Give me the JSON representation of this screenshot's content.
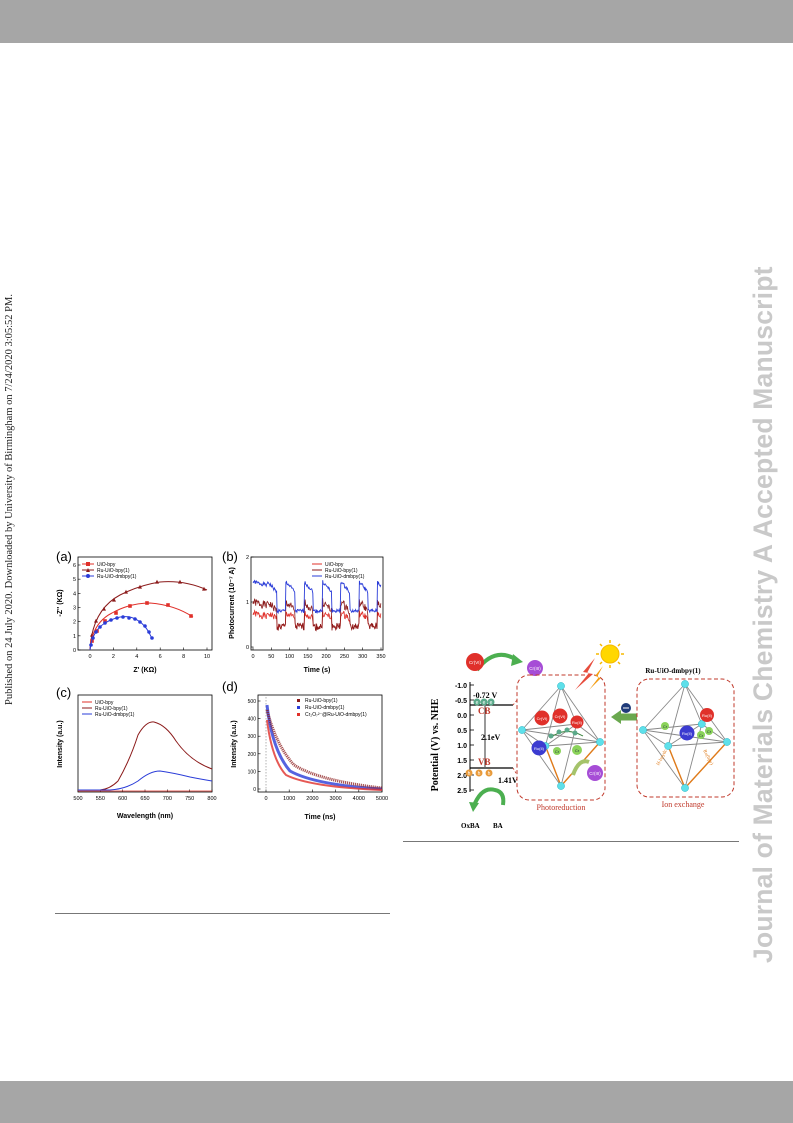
{
  "side_notice": "Published on 24 July 2020. Downloaded by University of Birmingham on 7/24/2020 3:05:52 PM.",
  "watermark": "Journal of Materials Chemistry A Accepted Manuscript",
  "figure_left": {
    "colors": {
      "uio_bpy": "#e0302a",
      "ru_uio_bpy": "#8b1a1a",
      "ru_uio_dmbpy": "#2a3cd8"
    },
    "panel_a": {
      "label": "(a)",
      "xlabel": "Z' (KΩ)",
      "ylabel": "-Z'' (KΩ)",
      "xticks": [
        "0",
        "2",
        "4",
        "6",
        "8",
        "10"
      ],
      "yticks": [
        "0",
        "1",
        "2",
        "3",
        "4",
        "5",
        "6"
      ],
      "legend": [
        "UiO-bpy",
        "Ru-UiO-bpy(1)",
        "Ru-UiO-dmbpy(1)"
      ]
    },
    "panel_b": {
      "label": "(b)",
      "xlabel": "Time (s)",
      "ylabel": "Photocurrent (10⁻⁷ A)",
      "xticks": [
        "0",
        "50",
        "100",
        "150",
        "200",
        "250",
        "300",
        "350"
      ],
      "yticks": [
        "0",
        "1",
        "2"
      ],
      "legend": [
        "UiO-bpy",
        "Ru-UiO-bpy(1)",
        "Ru-UiO-dmbpy(1)"
      ]
    },
    "panel_c": {
      "label": "(c)",
      "xlabel": "Wavelength (nm)",
      "ylabel": "Intensity (a.u.)",
      "xticks": [
        "500",
        "550",
        "600",
        "650",
        "700",
        "750",
        "800"
      ],
      "legend": [
        "UiO-bpy",
        "Ru-UiO-bpy(1)",
        "Ru-UiO-dmbpy(1)"
      ]
    },
    "panel_d": {
      "label": "(d)",
      "xlabel": "Time (ns)",
      "ylabel": "Intensity (a.u.)",
      "xticks": [
        "0",
        "1000",
        "2000",
        "3000",
        "4000",
        "5000"
      ],
      "yticks": [
        "0",
        "100",
        "200",
        "300",
        "400",
        "500"
      ],
      "legend": [
        "Ru-UiO-bpy(1)",
        "Ru-UiO-dmbpy(1)",
        "Cr₂O₇²⁻@Ru-UiO-dmbpy(1)"
      ]
    }
  },
  "figure_right": {
    "ylabel": "Potential (V) vs. NHE",
    "yticks": [
      "-1.0",
      "-0.5",
      "0.0",
      "0.5",
      "1.0",
      "1.5",
      "2.0",
      "2.5"
    ],
    "cb": "CB",
    "vb": "VB",
    "cb_potential": "-0.72 V",
    "gap": "2.1eV",
    "vb_potential": "1.41V",
    "oxba": "OxBA",
    "ba": "BA",
    "box_title": "Ru-UiO-dmbpy(1)",
    "photoreduction": "Photoreduction",
    "ion_exchange": "Ion exchange",
    "electron": "e",
    "hole": "h",
    "cr6": "Cr(VI)",
    "cr3": "Cr(III)",
    "ru": "Ru(II)",
    "cr": "Cr",
    "rod_left": "H-bpydc",
    "rod_right": "Ru(bpy)"
  }
}
